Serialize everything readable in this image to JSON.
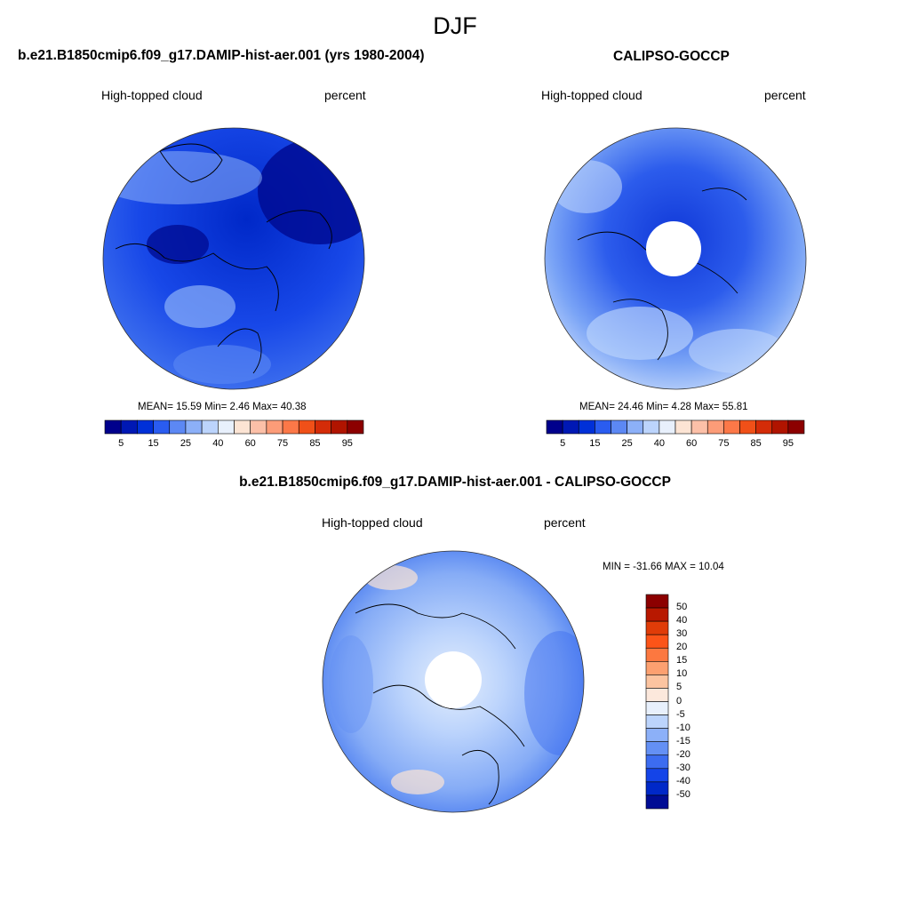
{
  "figure": {
    "title": "DJF",
    "model_title": "b.e21.B1850cmip6.f09_g17.DAMIP-hist-aer.001 (yrs 1980-2004)",
    "obs_title": "CALIPSO-GOCCP",
    "diff_title": "b.e21.B1850cmip6.f09_g17.DAMIP-hist-aer.001 - CALIPSO-GOCCP"
  },
  "panels": {
    "model": {
      "variable": "High-topped cloud",
      "units": "percent",
      "stats": "MEAN=  15.59  Min=   2.46  Max=  40.38",
      "mean": 15.59,
      "min": 2.46,
      "max": 40.38
    },
    "obs": {
      "variable": "High-topped cloud",
      "units": "percent",
      "stats": "MEAN=  24.46  Min=   4.28  Max=  55.81",
      "mean": 24.46,
      "min": 4.28,
      "max": 55.81
    },
    "diff": {
      "variable": "High-topped cloud",
      "units": "percent",
      "stats": "MIN = -31.66 MAX =  10.04",
      "min": -31.66,
      "max": 10.04
    }
  },
  "colorbar_abs": {
    "tick_labels": [
      "5",
      "15",
      "25",
      "40",
      "60",
      "75",
      "85",
      "95"
    ],
    "colors": [
      "#00008c",
      "#0018b4",
      "#0030d8",
      "#2a5cf0",
      "#5c88f4",
      "#8cb0f8",
      "#bcd4fc",
      "#e8f0fc",
      "#fce4d4",
      "#fcc0a8",
      "#fc9c78",
      "#fc7848",
      "#f05018",
      "#d42c08",
      "#b01400",
      "#8c0000"
    ]
  },
  "colorbar_diff": {
    "tick_labels": [
      "50",
      "40",
      "30",
      "20",
      "15",
      "10",
      "5",
      "0",
      "-5",
      "-10",
      "-15",
      "-20",
      "-30",
      "-40",
      "-50"
    ],
    "colors": [
      "#8c0000",
      "#b81800",
      "#e03c08",
      "#fc5418",
      "#fc7840",
      "#fca070",
      "#fcc4a0",
      "#fce8dc",
      "#e8f0fc",
      "#bcd4fc",
      "#8cb0f8",
      "#6490f4",
      "#3c6cf0",
      "#1444e8",
      "#0028c8",
      "#000c94"
    ]
  }
}
